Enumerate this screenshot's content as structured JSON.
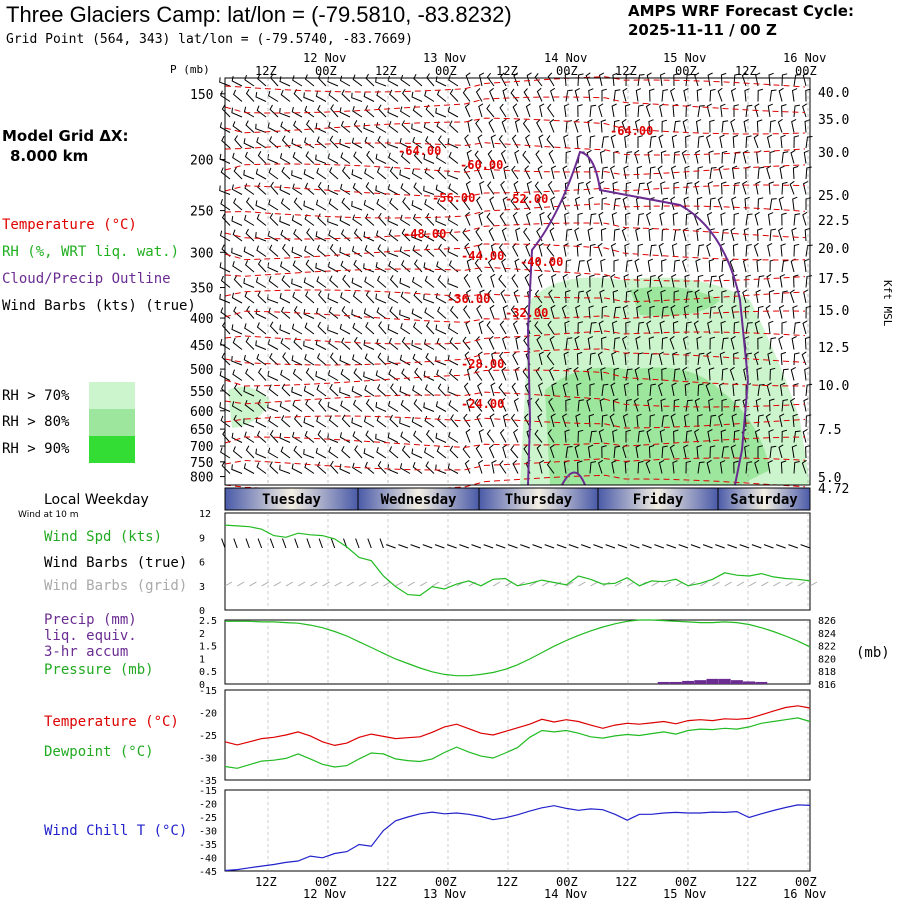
{
  "header": {
    "title": "Three Glaciers Camp:  lat/lon = (-79.5810, -83.8232)",
    "grid_point": "Grid Point (564, 343) lat/lon = (-79.5740, -83.7669)",
    "cycle_label": "AMPS WRF Forecast Cycle:",
    "cycle_value": "2025-11-11 / 00  Z"
  },
  "model_grid": {
    "label": "Model Grid ΔX:",
    "value": "8.000 km"
  },
  "legend": {
    "temperature": "Temperature (°C)",
    "rh": "RH (%, WRT liq. wat.)",
    "cloud": "Cloud/Precip Outline",
    "wind": "Wind Barbs (kts) (true)",
    "rh70": "RH > 70%",
    "rh80": "RH > 80%",
    "rh90": "RH > 90%"
  },
  "colors": {
    "temperature": "#e00000",
    "rh": "#1faf1f",
    "cloud": "#6a2c91",
    "wind": "#000000",
    "pressure": "#22bb22",
    "wind_chill": "#2222cc",
    "rh70": "#cdf5cd",
    "rh80": "#9de69d",
    "rh90": "#33dd33"
  },
  "time_axis": {
    "top_labels": [
      "12Z",
      "00Z",
      "12Z",
      "00Z",
      "12Z",
      "00Z",
      "12Z",
      "00Z",
      "12Z",
      "00Z"
    ],
    "date_labels": [
      "12 Nov",
      "13 Nov",
      "14 Nov",
      "15 Nov",
      "16 Nov"
    ],
    "weekdays": [
      "Tuesday",
      "Wednesday",
      "Thursday",
      "Friday",
      "Saturday"
    ],
    "weekday_title": "Local Weekday",
    "wind_height": "Wind at 10 m"
  },
  "chart_data": [
    {
      "type": "line",
      "name": "cross-section",
      "ylabel": "P (mb)",
      "y_right_label": "Kft MSL",
      "pressure_ticks": [
        150,
        200,
        250,
        300,
        350,
        400,
        450,
        500,
        550,
        600,
        650,
        700,
        750,
        800
      ],
      "height_ticks": [
        "40.0",
        "35.0",
        "30.0",
        "25.0",
        "22.5",
        "20.0",
        "17.5",
        "15.0",
        "12.5",
        "10.0",
        "7.5",
        "5.0",
        "4.72"
      ],
      "temperature_contour_labels": [
        "-64.00",
        "-64.00",
        "-60.00",
        "-56.00",
        "-52.00",
        "-48.00",
        "-44.00",
        "-40.00",
        "-36.00",
        "-32.00",
        "-28.00",
        "-24.00"
      ]
    },
    {
      "type": "line",
      "name": "surface-wind",
      "labels": {
        "speed": "Wind Spd (kts)",
        "barbs_true": "Wind Barbs (true)",
        "barbs_grid": "Wind Barbs (grid)"
      },
      "y_ticks": [
        "12",
        "9",
        "6",
        "3",
        "0"
      ],
      "ylim": [
        0,
        12
      ],
      "speed": [
        10.5,
        10.4,
        10.3,
        10,
        9.2,
        9,
        9.5,
        9.3,
        9.2,
        8.8,
        7.8,
        6.5,
        6.1,
        4.2,
        2.9,
        1.9,
        1.8,
        2.9,
        2.6,
        3.2,
        3.6,
        3.0,
        3.8,
        3.9,
        3.0,
        3.3,
        3.7,
        3.4,
        3.1,
        4.2,
        3.8,
        3.2,
        3.3,
        4.0,
        3.0,
        3.6,
        3.5,
        3.8,
        3.0,
        3.3,
        3.8,
        4.6,
        4.3,
        4.2,
        4.5,
        4.1,
        3.9,
        3.8,
        3.6
      ]
    },
    {
      "type": "line",
      "name": "precip-pressure",
      "labels": {
        "precip": "Precip (mm)",
        "liq": "liq. equiv.",
        "accum": "3-hr accum",
        "pressure": "Pressure (mb)",
        "unit": "(mb)"
      },
      "left_ticks": [
        "2.5",
        "2",
        "1.5",
        "1",
        "0.5",
        "0"
      ],
      "right_ticks": [
        "826",
        "824",
        "822",
        "820",
        "818",
        "816"
      ],
      "pressure": [
        825.8,
        825.8,
        825.8,
        825.7,
        825.7,
        825.6,
        825.5,
        825.2,
        824.8,
        824.2,
        823.5,
        822.6,
        821.7,
        820.8,
        819.9,
        819.2,
        818.5,
        817.9,
        817.5,
        817.3,
        817.3,
        817.5,
        817.8,
        818.3,
        819.0,
        819.9,
        820.9,
        821.9,
        822.8,
        823.6,
        824.3,
        824.9,
        825.4,
        825.8,
        826.0,
        826.0,
        825.9,
        825.8,
        825.7,
        825.6,
        825.6,
        825.7,
        825.6,
        825.3,
        824.8,
        824.2,
        823.5,
        822.7,
        821.8
      ],
      "precip": [
        0,
        0,
        0,
        0,
        0,
        0,
        0,
        0,
        0,
        0,
        0,
        0,
        0,
        0,
        0,
        0,
        0,
        0,
        0,
        0,
        0,
        0,
        0,
        0,
        0,
        0,
        0,
        0,
        0,
        0,
        0,
        0,
        0,
        0,
        0,
        0,
        0.08,
        0.08,
        0.12,
        0.15,
        0.2,
        0.2,
        0.15,
        0.1,
        0.08,
        0,
        0,
        0,
        0
      ]
    },
    {
      "type": "line",
      "name": "temperature-dewpoint",
      "labels": {
        "temperature": "Temperature (°C)",
        "dewpoint": "Dewpoint (°C)"
      },
      "y_ticks": [
        "-15",
        "-20",
        "-25",
        "-30",
        "-35"
      ],
      "ylim": [
        -35,
        -15
      ],
      "temperature": [
        -26.5,
        -27.2,
        -26.5,
        -25.8,
        -25.5,
        -25.0,
        -24.3,
        -25.2,
        -26.5,
        -27.3,
        -26.8,
        -25.5,
        -24.8,
        -25.3,
        -25.8,
        -25.6,
        -25.4,
        -24.4,
        -23.2,
        -22.6,
        -23.6,
        -24.6,
        -25.0,
        -24.2,
        -23.4,
        -22.6,
        -21.5,
        -22.1,
        -21.6,
        -22.0,
        -22.8,
        -23.5,
        -22.8,
        -22.4,
        -22.6,
        -22.3,
        -22.0,
        -22.5,
        -21.8,
        -21.6,
        -21.8,
        -21.4,
        -21.5,
        -21.3,
        -20.5,
        -19.7,
        -18.9,
        -18.5,
        -19.0
      ],
      "dewpoint": [
        -32.0,
        -32.4,
        -31.6,
        -30.8,
        -30.6,
        -30.2,
        -29.2,
        -30.3,
        -31.5,
        -32.1,
        -31.8,
        -30.3,
        -29.0,
        -29.2,
        -30.3,
        -30.7,
        -30.9,
        -30.3,
        -28.9,
        -27.7,
        -28.8,
        -29.7,
        -30.1,
        -29.0,
        -27.8,
        -25.5,
        -24.0,
        -24.3,
        -24.0,
        -24.6,
        -25.4,
        -25.7,
        -25.2,
        -24.9,
        -25.1,
        -24.7,
        -24.3,
        -24.8,
        -24.0,
        -23.7,
        -23.8,
        -23.5,
        -23.7,
        -23.2,
        -22.4,
        -22.0,
        -21.6,
        -21.2,
        -22.0
      ]
    },
    {
      "type": "line",
      "name": "wind-chill",
      "labels": {
        "wind_chill": "Wind Chill T (°C)"
      },
      "y_ticks": [
        "-15",
        "-20",
        "-25",
        "-30",
        "-35",
        "-40",
        "-45"
      ],
      "ylim": [
        -45,
        -15
      ],
      "wind_chill": [
        -44.8,
        -44.5,
        -43.8,
        -43.2,
        -42.6,
        -41.8,
        -41.3,
        -39.5,
        -40.1,
        -38.5,
        -37.8,
        -35.2,
        -35.8,
        -30.0,
        -26.4,
        -25.0,
        -23.8,
        -23.2,
        -23.8,
        -23.5,
        -24.0,
        -24.8,
        -26.0,
        -25.3,
        -24.2,
        -22.8,
        -21.6,
        -20.8,
        -21.8,
        -22.5,
        -22.0,
        -22.3,
        -24.0,
        -26.2,
        -24.0,
        -24.0,
        -23.5,
        -23.3,
        -23.5,
        -23.5,
        -23.2,
        -23.3,
        -23.0,
        -25.2,
        -23.8,
        -22.6,
        -21.5,
        -20.5,
        -20.7
      ]
    }
  ]
}
